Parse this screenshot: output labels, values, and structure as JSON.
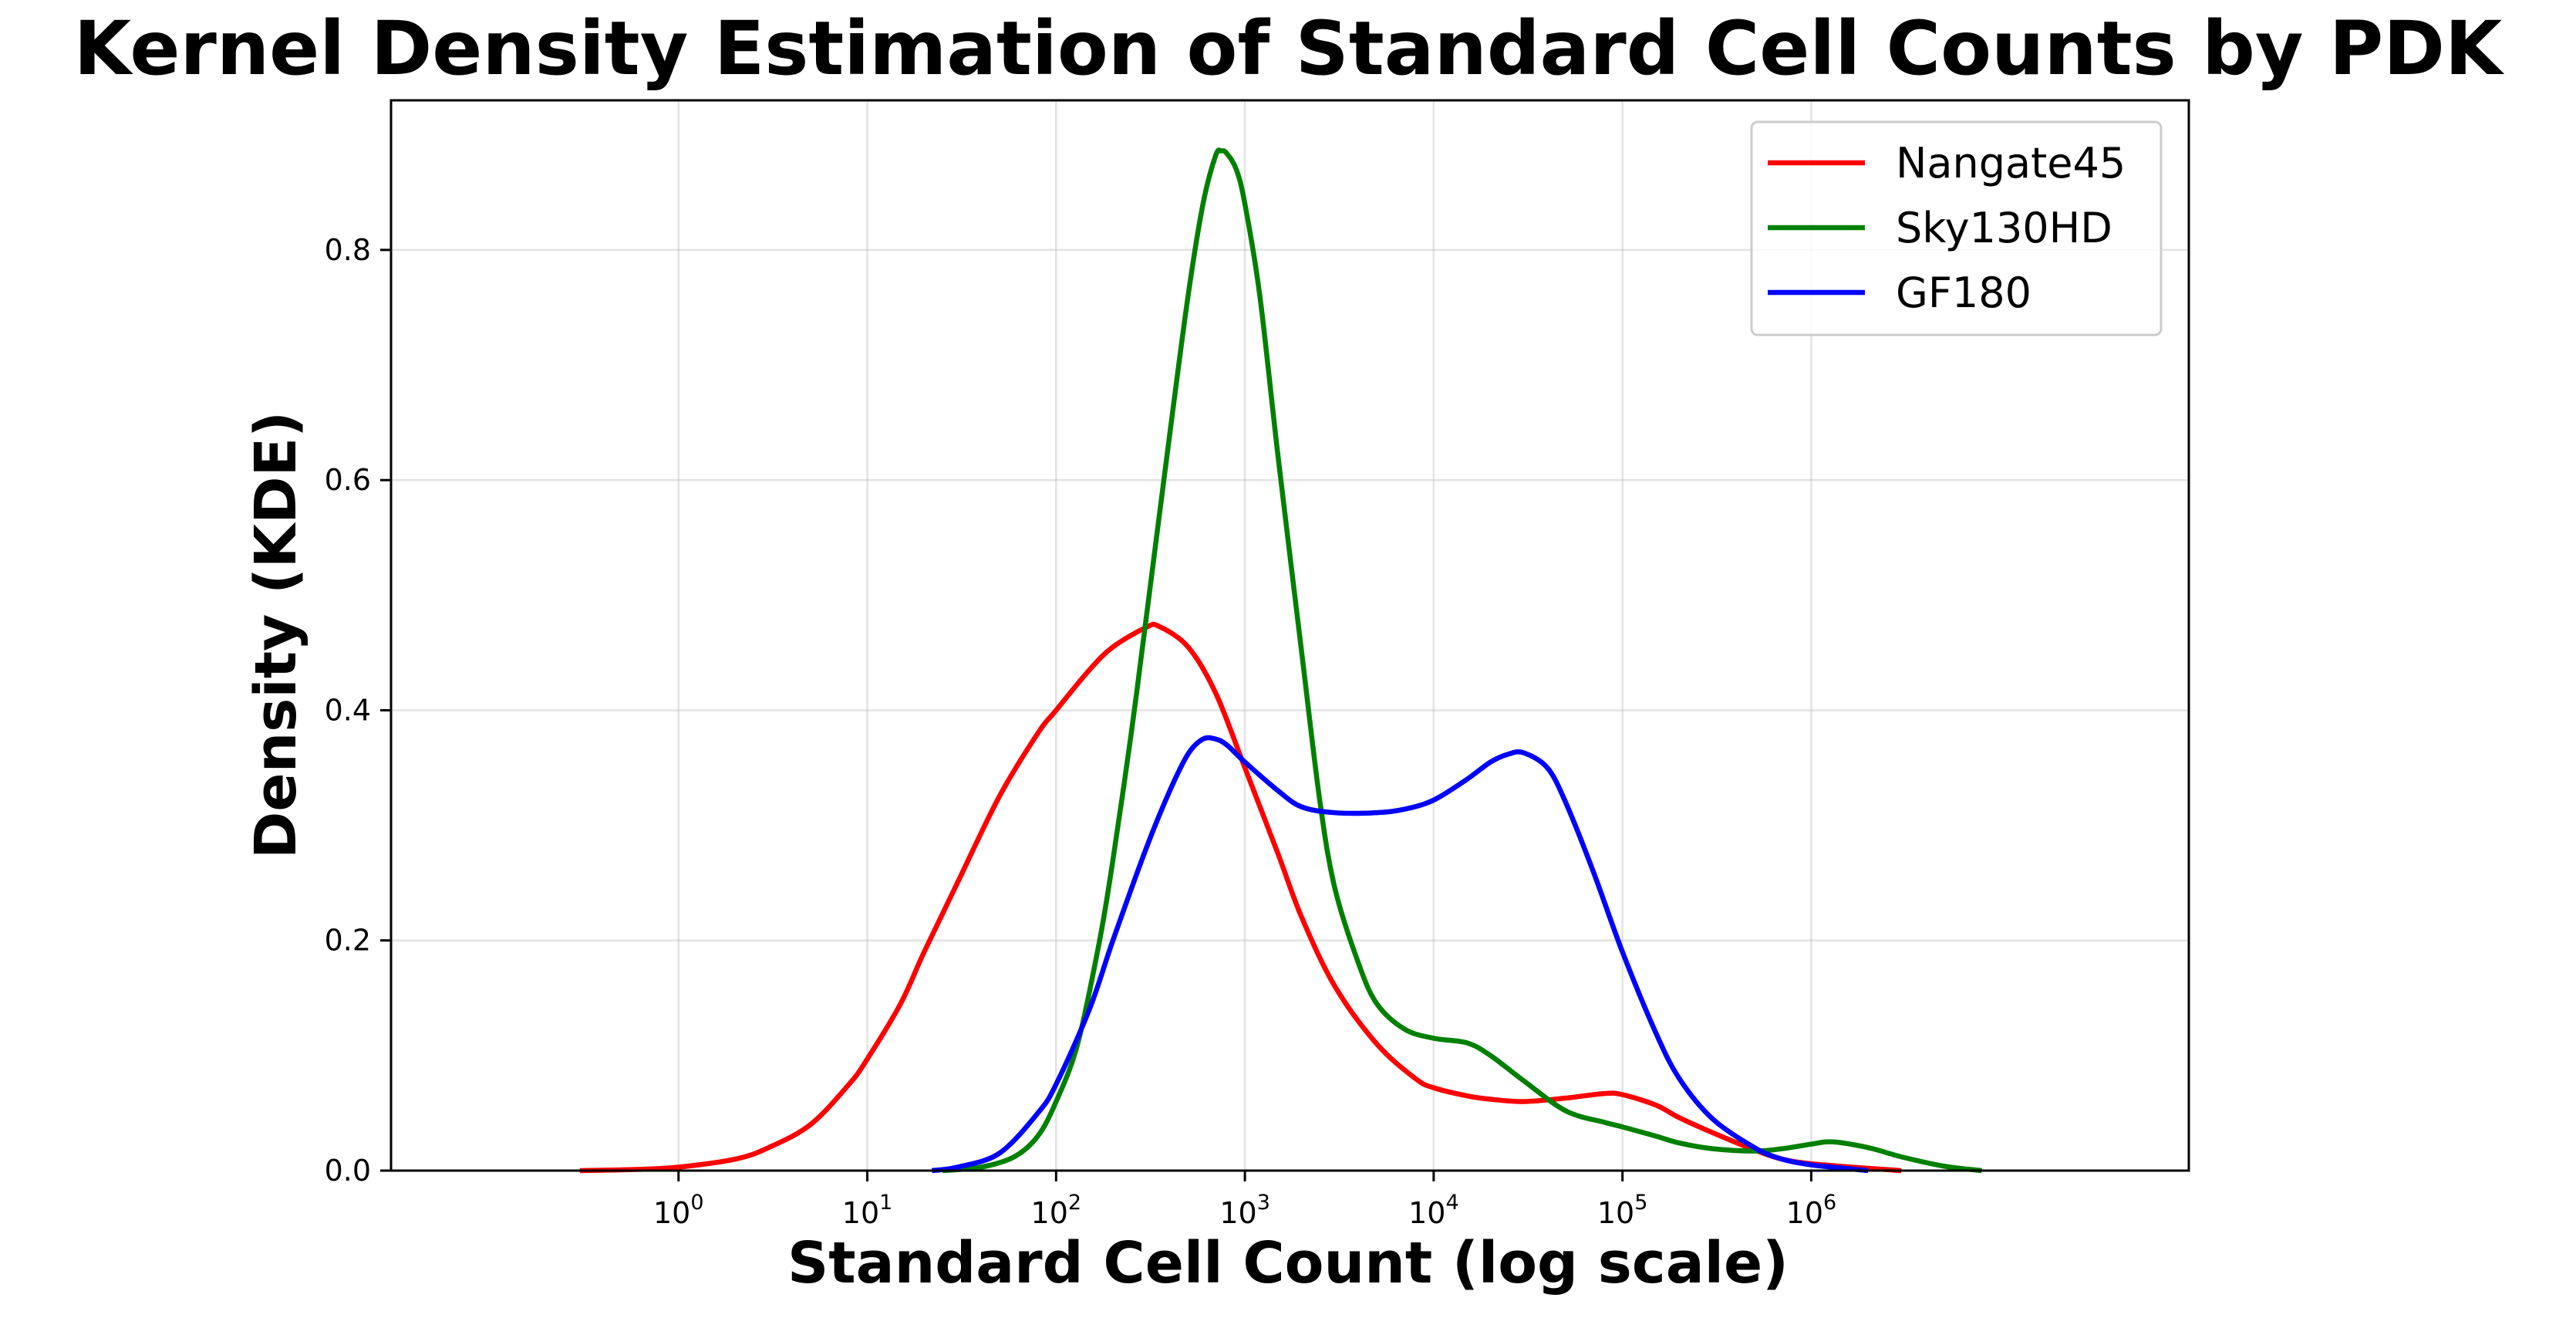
{
  "chart_data": {
    "type": "line",
    "title": "Kernel Density Estimation of Standard Cell Counts by PDK",
    "xlabel": "Standard Cell Count (log scale)",
    "ylabel": "Density (KDE)",
    "x_scale": "log",
    "xlim": [
      0.03,
      100000000
    ],
    "ylim": [
      0,
      0.93
    ],
    "x_ticks": [
      {
        "base": "10",
        "exp": "0",
        "value": 1
      },
      {
        "base": "10",
        "exp": "1",
        "value": 10
      },
      {
        "base": "10",
        "exp": "2",
        "value": 100
      },
      {
        "base": "10",
        "exp": "3",
        "value": 1000
      },
      {
        "base": "10",
        "exp": "4",
        "value": 10000
      },
      {
        "base": "10",
        "exp": "5",
        "value": 100000
      },
      {
        "base": "10",
        "exp": "6",
        "value": 1000000
      }
    ],
    "y_ticks": [
      "0.0",
      "0.2",
      "0.4",
      "0.6",
      "0.8"
    ],
    "grid": true,
    "legend_position": "top-right",
    "series": [
      {
        "name": "Nangate45",
        "color": "#ff0000",
        "points": [
          [
            0.3,
            0.0
          ],
          [
            0.6,
            0.001
          ],
          [
            1,
            0.003
          ],
          [
            2,
            0.01
          ],
          [
            3,
            0.02
          ],
          [
            5,
            0.04
          ],
          [
            8,
            0.075
          ],
          [
            10,
            0.097
          ],
          [
            15,
            0.145
          ],
          [
            20,
            0.19
          ],
          [
            30,
            0.25
          ],
          [
            50,
            0.325
          ],
          [
            80,
            0.38
          ],
          [
            100,
            0.4
          ],
          [
            150,
            0.435
          ],
          [
            200,
            0.455
          ],
          [
            300,
            0.472
          ],
          [
            350,
            0.473
          ],
          [
            500,
            0.455
          ],
          [
            700,
            0.415
          ],
          [
            1000,
            0.35
          ],
          [
            1500,
            0.275
          ],
          [
            2000,
            0.22
          ],
          [
            3000,
            0.16
          ],
          [
            5000,
            0.11
          ],
          [
            8000,
            0.08
          ],
          [
            10000,
            0.072
          ],
          [
            15000,
            0.065
          ],
          [
            20000,
            0.062
          ],
          [
            30000,
            0.06
          ],
          [
            50000,
            0.063
          ],
          [
            80000,
            0.067
          ],
          [
            100000,
            0.066
          ],
          [
            150000,
            0.057
          ],
          [
            200000,
            0.046
          ],
          [
            300000,
            0.033
          ],
          [
            500000,
            0.018
          ],
          [
            700000,
            0.01
          ],
          [
            1000000,
            0.006
          ],
          [
            2000000,
            0.002
          ],
          [
            3000000,
            0.0
          ]
        ]
      },
      {
        "name": "Sky130HD",
        "color": "#008000",
        "points": [
          [
            25,
            0.0
          ],
          [
            40,
            0.003
          ],
          [
            60,
            0.012
          ],
          [
            80,
            0.03
          ],
          [
            100,
            0.06
          ],
          [
            130,
            0.11
          ],
          [
            170,
            0.2
          ],
          [
            200,
            0.27
          ],
          [
            250,
            0.38
          ],
          [
            300,
            0.48
          ],
          [
            400,
            0.64
          ],
          [
            500,
            0.76
          ],
          [
            600,
            0.84
          ],
          [
            700,
            0.882
          ],
          [
            750,
            0.886
          ],
          [
            800,
            0.884
          ],
          [
            900,
            0.87
          ],
          [
            1000,
            0.84
          ],
          [
            1200,
            0.76
          ],
          [
            1500,
            0.62
          ],
          [
            2000,
            0.45
          ],
          [
            2500,
            0.32
          ],
          [
            3000,
            0.245
          ],
          [
            4000,
            0.18
          ],
          [
            5000,
            0.145
          ],
          [
            7000,
            0.123
          ],
          [
            10000,
            0.115
          ],
          [
            15000,
            0.111
          ],
          [
            20000,
            0.1
          ],
          [
            30000,
            0.078
          ],
          [
            50000,
            0.052
          ],
          [
            80000,
            0.042
          ],
          [
            100000,
            0.038
          ],
          [
            150000,
            0.03
          ],
          [
            200000,
            0.024
          ],
          [
            300000,
            0.019
          ],
          [
            500000,
            0.017
          ],
          [
            700000,
            0.019
          ],
          [
            1000000,
            0.023
          ],
          [
            1300000,
            0.025
          ],
          [
            2000000,
            0.02
          ],
          [
            3000000,
            0.012
          ],
          [
            5000000,
            0.004
          ],
          [
            8000000,
            0.0
          ]
        ]
      },
      {
        "name": "GF180",
        "color": "#0000ff",
        "points": [
          [
            22,
            0.0
          ],
          [
            30,
            0.003
          ],
          [
            50,
            0.015
          ],
          [
            80,
            0.05
          ],
          [
            100,
            0.075
          ],
          [
            150,
            0.14
          ],
          [
            200,
            0.2
          ],
          [
            300,
            0.28
          ],
          [
            400,
            0.33
          ],
          [
            500,
            0.362
          ],
          [
            600,
            0.375
          ],
          [
            700,
            0.375
          ],
          [
            800,
            0.37
          ],
          [
            1000,
            0.355
          ],
          [
            1500,
            0.33
          ],
          [
            2000,
            0.316
          ],
          [
            3000,
            0.311
          ],
          [
            5000,
            0.311
          ],
          [
            7000,
            0.314
          ],
          [
            10000,
            0.322
          ],
          [
            15000,
            0.34
          ],
          [
            20000,
            0.355
          ],
          [
            25000,
            0.362
          ],
          [
            30000,
            0.363
          ],
          [
            40000,
            0.35
          ],
          [
            50000,
            0.32
          ],
          [
            70000,
            0.26
          ],
          [
            100000,
            0.19
          ],
          [
            150000,
            0.12
          ],
          [
            200000,
            0.08
          ],
          [
            300000,
            0.045
          ],
          [
            500000,
            0.02
          ],
          [
            700000,
            0.01
          ],
          [
            1000000,
            0.005
          ],
          [
            1500000,
            0.002
          ],
          [
            2000000,
            0.0
          ]
        ]
      }
    ]
  }
}
